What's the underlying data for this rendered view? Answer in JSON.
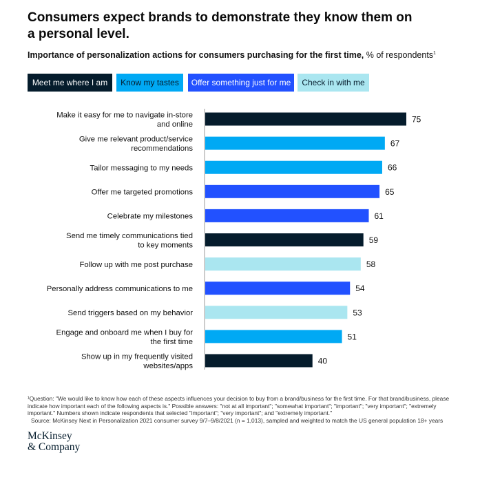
{
  "header": {
    "title": "Consumers expect brands to demonstrate they know them on a personal level.",
    "subtitle_bold": "Importance of personalization actions for consumers purchasing for the first time,",
    "subtitle_rest": " % of respondents",
    "subtitle_sup": "1"
  },
  "legend": [
    {
      "label": "Meet me where I am",
      "color": "#051c2c",
      "text_color": "#ffffff"
    },
    {
      "label": "Know my tastes",
      "color": "#00a9f4",
      "text_color": "#051c2c"
    },
    {
      "label": "Offer something just for me",
      "color": "#2251ff",
      "text_color": "#ffffff"
    },
    {
      "label": "Check in with me",
      "color": "#aae6f0",
      "text_color": "#051c2c"
    }
  ],
  "chart_data": {
    "type": "bar",
    "orientation": "horizontal",
    "categories": [
      "Make it easy for me to navigate in-store and online",
      "Give me relevant product/service recommendations",
      "Tailor messaging to my needs",
      "Offer me targeted promotions",
      "Celebrate my milestones",
      "Send me timely communications tied to key moments",
      "Follow up with me post purchase",
      "Personally address communications to me",
      "Send triggers based on my behavior",
      "Engage and onboard me when I buy for the first time",
      "Show up in my frequently visited websites/apps"
    ],
    "category_lines": [
      [
        "Make it easy for me to navigate in-store",
        "and online"
      ],
      [
        "Give me relevant product/service",
        "recommendations"
      ],
      [
        "Tailor messaging to my needs"
      ],
      [
        "Offer me targeted promotions"
      ],
      [
        "Celebrate my milestones"
      ],
      [
        "Send me timely communications tied",
        "to key moments"
      ],
      [
        "Follow up with me post purchase"
      ],
      [
        "Personally address communications to me"
      ],
      [
        "Send triggers based on my behavior"
      ],
      [
        "Engage and onboard me when I buy for",
        "the first time"
      ],
      [
        "Show up in my frequently visited",
        "websites/apps"
      ]
    ],
    "values": [
      75,
      67,
      66,
      65,
      61,
      59,
      58,
      54,
      53,
      51,
      40
    ],
    "groups": [
      "Meet me where I am",
      "Know my tastes",
      "Know my tastes",
      "Offer something just for me",
      "Offer something just for me",
      "Meet me where I am",
      "Check in with me",
      "Offer something just for me",
      "Check in with me",
      "Know my tastes",
      "Meet me where I am"
    ],
    "xlim": [
      0,
      75
    ],
    "data_labels": [
      "75",
      "67",
      "66",
      "65",
      "61",
      "59",
      "58",
      "54",
      "53",
      "51",
      "40"
    ]
  },
  "footnote": {
    "line1": "¹Question: \"We would like to know how each of these aspects influences your decision to buy from a brand/business for the first time. For that brand/business, please indicate how important each of the following aspects is.\" Possible answers: \"not at all important\"; \"somewhat important\"; \"important\"; \"very important\"; \"extremely important.\" Numbers shown indicate respondents that selected \"important\"; \"very important\"; and \"extremely important.\"",
    "source": "Source: McKinsey Next in Personalization 2021 consumer survey 9/7–9/8/2021 (n = 1,013), sampled and weighted to match the US general population 18+ years"
  },
  "logo": {
    "line1": "McKinsey",
    "line2": "& Company"
  }
}
